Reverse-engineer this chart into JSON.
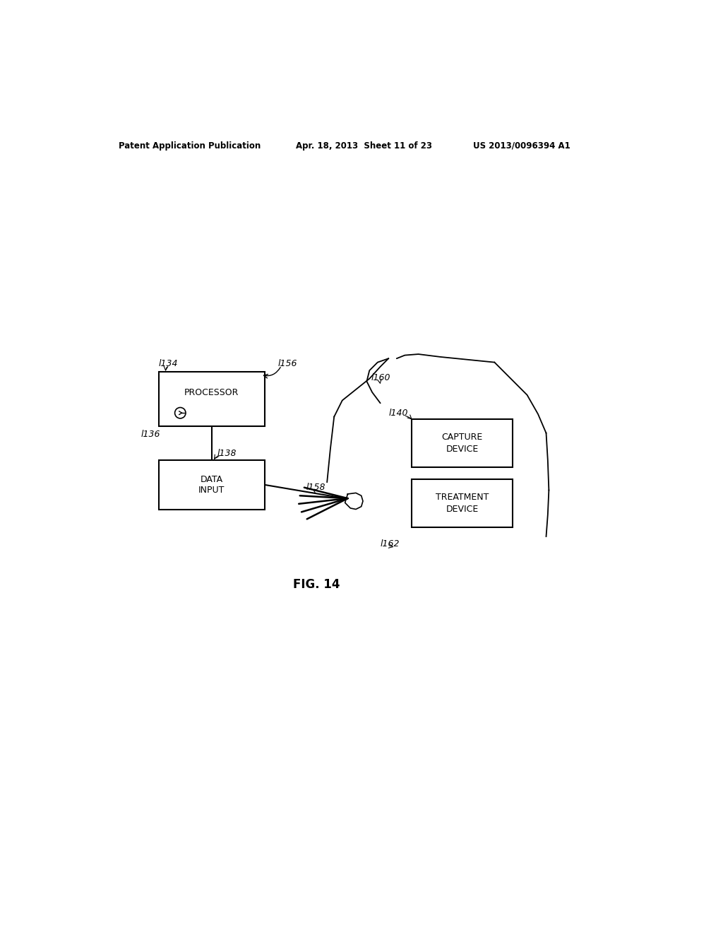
{
  "background_color": "#ffffff",
  "header_left": "Patent Application Publication",
  "header_mid": "Apr. 18, 2013  Sheet 11 of 23",
  "header_right": "US 2013/0096394 A1",
  "fig_label": "FIG. 14",
  "processor_label": "PROCESSOR",
  "data_input_line1": "DATA",
  "data_input_line2": "INPUT",
  "capture_device_line1": "CAPTURE",
  "capture_device_line2": "DEVICE",
  "treatment_device_line1": "TREATMENT",
  "treatment_device_line2": "DEVICE",
  "ref_1134": "l134",
  "ref_1136": "l136",
  "ref_1138": "l138",
  "ref_1140": "l140",
  "ref_1156": "l156",
  "ref_1158": "l158",
  "ref_1160": "l160",
  "ref_1162": "l162"
}
